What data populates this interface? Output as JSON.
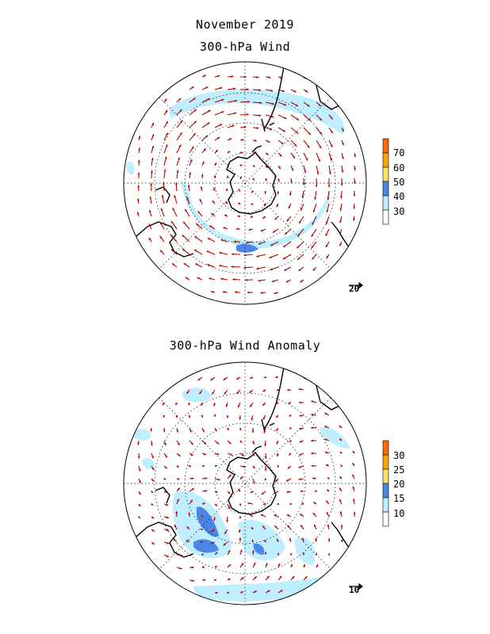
{
  "titles": {
    "main": "November 2019",
    "top_panel": "300-hPa Wind",
    "bottom_panel": "300-hPa Wind Anomaly"
  },
  "top_colorbar": {
    "labels": [
      "70",
      "60",
      "50",
      "40",
      "30"
    ],
    "colors": [
      "#ff6a00",
      "#ffa500",
      "#ffe066",
      "#4a86e8",
      "#bfefff",
      "#ffffff"
    ]
  },
  "bottom_colorbar": {
    "labels": [
      "30",
      "25",
      "20",
      "15",
      "10"
    ],
    "colors": [
      "#ff6a00",
      "#ffa500",
      "#ffe066",
      "#4a86e8",
      "#bfefff",
      "#ffffff"
    ]
  },
  "reference_vectors": {
    "top": "20",
    "bottom": "10"
  },
  "colors": {
    "arrow": "#b00000",
    "shade_light": "#bfefff",
    "shade_dark": "#4a86e8",
    "coast": "#000000"
  }
}
